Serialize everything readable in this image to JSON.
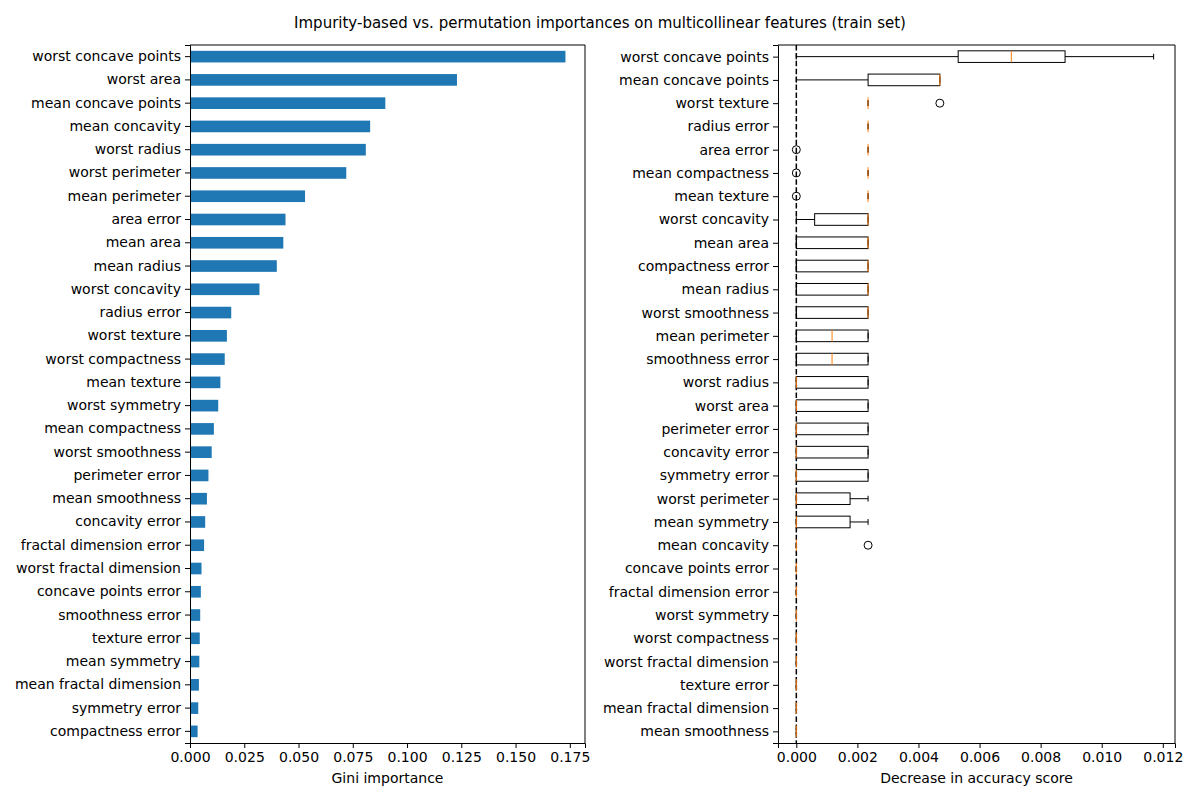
{
  "chart_data": [
    {
      "type": "bar",
      "title": "Impurity-based vs. permutation importances on multicollinear features (train set)",
      "orientation": "horizontal",
      "x_label": "Gini importance",
      "color": "#1f77b4",
      "categories": [
        "worst concave points",
        "worst area",
        "mean concave points",
        "mean concavity",
        "worst radius",
        "worst perimeter",
        "mean perimeter",
        "area error",
        "mean area",
        "mean radius",
        "worst concavity",
        "radius error",
        "worst texture",
        "worst compactness",
        "mean texture",
        "worst symmetry",
        "mean compactness",
        "worst smoothness",
        "perimeter error",
        "mean smoothness",
        "concavity error",
        "fractal dimension error",
        "worst fractal dimension",
        "concave points error",
        "smoothness error",
        "texture error",
        "mean symmetry",
        "mean fractal dimension",
        "symmetry error",
        "compactness error"
      ],
      "values": [
        0.173,
        0.123,
        0.09,
        0.083,
        0.081,
        0.072,
        0.053,
        0.044,
        0.043,
        0.04,
        0.032,
        0.019,
        0.017,
        0.016,
        0.014,
        0.013,
        0.011,
        0.01,
        0.0085,
        0.0078,
        0.007,
        0.0065,
        0.0053,
        0.005,
        0.0047,
        0.0045,
        0.0043,
        0.0041,
        0.0038,
        0.0035
      ],
      "xlim": [
        0,
        0.182
      ],
      "xticks": [
        {
          "value": 0,
          "label": "0.000"
        },
        {
          "value": 0.025,
          "label": "0.025"
        },
        {
          "value": 0.05,
          "label": "0.050"
        },
        {
          "value": 0.075,
          "label": "0.075"
        },
        {
          "value": 0.1,
          "label": "0.100"
        },
        {
          "value": 0.125,
          "label": "0.125"
        },
        {
          "value": 0.15,
          "label": "0.150"
        },
        {
          "value": 0.175,
          "label": "0.175"
        }
      ]
    },
    {
      "type": "box",
      "orientation": "horizontal",
      "x_label": "Decrease in accuracy score",
      "categories": [
        "worst concave points",
        "mean concave points",
        "worst texture",
        "radius error",
        "area error",
        "mean compactness",
        "mean texture",
        "worst concavity",
        "mean area",
        "compactness error",
        "mean radius",
        "worst smoothness",
        "mean perimeter",
        "smoothness error",
        "worst radius",
        "worst area",
        "perimeter error",
        "concavity error",
        "symmetry error",
        "worst perimeter",
        "mean symmetry",
        "mean concavity",
        "concave points error",
        "fractal dimension error",
        "worst symmetry",
        "worst compactness",
        "worst fractal dimension",
        "texture error",
        "mean fractal dimension",
        "mean smoothness"
      ],
      "whisker_low": [
        0,
        0,
        0.00235,
        0.00235,
        0.00235,
        0.00235,
        0.00235,
        0,
        0,
        0,
        0,
        0,
        0,
        0,
        0,
        0,
        0,
        0,
        0,
        0,
        0,
        0,
        0,
        0,
        0,
        0,
        0,
        0,
        0,
        0
      ],
      "q1": [
        0.0053,
        0.00235,
        0.00235,
        0.00235,
        0.00235,
        0.00235,
        0.00235,
        0.0006,
        0,
        0,
        0,
        0,
        0,
        0,
        0,
        0,
        0,
        0,
        0,
        0,
        0,
        0,
        0,
        0,
        0,
        0,
        0,
        0,
        0,
        0
      ],
      "median": [
        0.00704,
        0.0047,
        0.00235,
        0.00235,
        0.00235,
        0.00235,
        0.00235,
        0.00235,
        0.00235,
        0.00235,
        0.00235,
        0.00235,
        0.00117,
        0.00117,
        0,
        0,
        0,
        0,
        0,
        0,
        0,
        0,
        0,
        0,
        0,
        0,
        0,
        0,
        0,
        0
      ],
      "q3": [
        0.0088,
        0.0047,
        0.00235,
        0.00235,
        0.00235,
        0.00235,
        0.00235,
        0.00235,
        0.00235,
        0.00235,
        0.00235,
        0.00235,
        0.00235,
        0.00235,
        0.00235,
        0.00235,
        0.00235,
        0.00235,
        0.00235,
        0.00176,
        0.00176,
        0,
        0,
        0,
        0,
        0,
        0,
        0,
        0,
        0
      ],
      "whisker_high": [
        0.0117,
        0.0047,
        0.00235,
        0.00235,
        0.00235,
        0.00235,
        0.00235,
        0.00235,
        0.00235,
        0.00235,
        0.00235,
        0.00235,
        0.00235,
        0.00235,
        0.00235,
        0.00235,
        0.00235,
        0.00235,
        0.00235,
        0.00235,
        0.00235,
        0,
        0,
        0,
        0,
        0,
        0,
        0,
        0,
        0
      ],
      "outliers": [
        [],
        [],
        [
          0.0047
        ],
        [],
        [
          0
        ],
        [
          0
        ],
        [
          0
        ],
        [],
        [],
        [],
        [],
        [],
        [],
        [],
        [],
        [],
        [],
        [],
        [],
        [],
        [],
        [
          0.00235
        ],
        [],
        [],
        [],
        [],
        [],
        [],
        [],
        []
      ],
      "reference_line": 0,
      "xlim": [
        -0.0006,
        0.0124
      ],
      "xticks": [
        {
          "value": 0,
          "label": "0.000"
        },
        {
          "value": 0.002,
          "label": "0.002"
        },
        {
          "value": 0.004,
          "label": "0.004"
        },
        {
          "value": 0.006,
          "label": "0.006"
        },
        {
          "value": 0.008,
          "label": "0.008"
        },
        {
          "value": 0.01,
          "label": "0.010"
        },
        {
          "value": 0.012,
          "label": "0.012"
        }
      ]
    }
  ]
}
